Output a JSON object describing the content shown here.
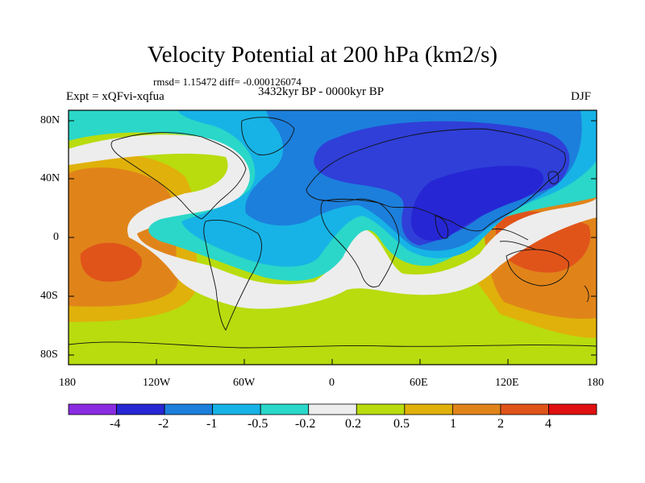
{
  "title": "Velocity Potential at 200 hPa (km2/s)",
  "stats": "rmsd= 1.15472 diff= -0.000126074",
  "experiment": "Expt = xQFvi-xqfua",
  "period": "3432kyr BP - 0000kyr BP",
  "season": "DJF",
  "lat_labels": [
    "80N",
    "40N",
    "0",
    "40S",
    "80S"
  ],
  "lon_labels": [
    "180",
    "120W",
    "60W",
    "0",
    "60E",
    "120E",
    "180"
  ],
  "colorbar": {
    "labels": [
      "-4",
      "-2",
      "-1",
      "-0.5",
      "-0.2",
      "0.2",
      "0.5",
      "1",
      "2",
      "4"
    ],
    "colors": [
      "#8a2be2",
      "#2626d4",
      "#1c7fdc",
      "#17b3e6",
      "#2ad7c8",
      "#ededed",
      "#b8dc0e",
      "#e0b10a",
      "#e0841a",
      "#e0541a",
      "#e01010"
    ]
  }
}
